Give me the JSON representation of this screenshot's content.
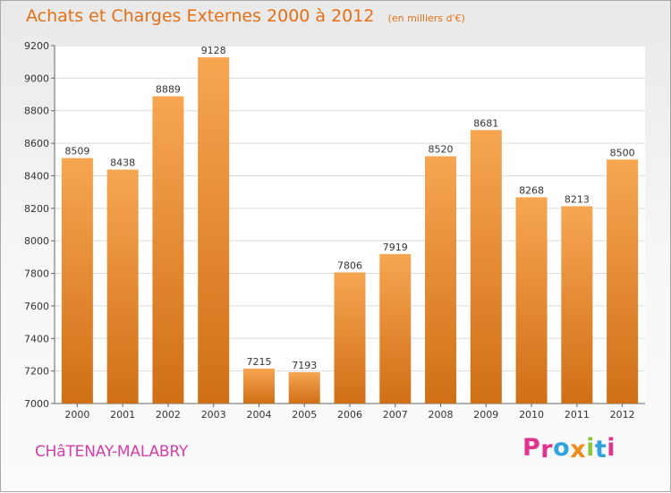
{
  "header": {
    "title": "Achats et Charges Externes 2000 à 2012",
    "unit": "(en milliers d'€)"
  },
  "footer": {
    "city": "CHâTENAY-MALABRY",
    "logo": "Proxiti"
  },
  "colors": {
    "title": "#e46f16",
    "city": "#d43dab",
    "bar_light": "#f7a651",
    "bar_dark": "#d06f16",
    "logo_letters": [
      "#e0338d",
      "#e0338d",
      "#2fa3df",
      "#f08a1b",
      "#8cc63e",
      "#2fa3df",
      "#e0338d"
    ]
  },
  "chart_data": {
    "type": "bar",
    "categories": [
      "2000",
      "2001",
      "2002",
      "2003",
      "2004",
      "2005",
      "2006",
      "2007",
      "2008",
      "2009",
      "2010",
      "2011",
      "2012"
    ],
    "values": [
      8509,
      8438,
      8889,
      9128,
      7215,
      7193,
      7806,
      7919,
      8520,
      8681,
      8268,
      8213,
      8500
    ],
    "title": "Achats et Charges Externes 2000 à 2012",
    "ylim": [
      7000,
      9200
    ],
    "yticks": [
      7000,
      7200,
      7400,
      7600,
      7800,
      8000,
      8200,
      8400,
      8600,
      8800,
      9000,
      9200
    ],
    "grid": true,
    "data_labels": true
  }
}
